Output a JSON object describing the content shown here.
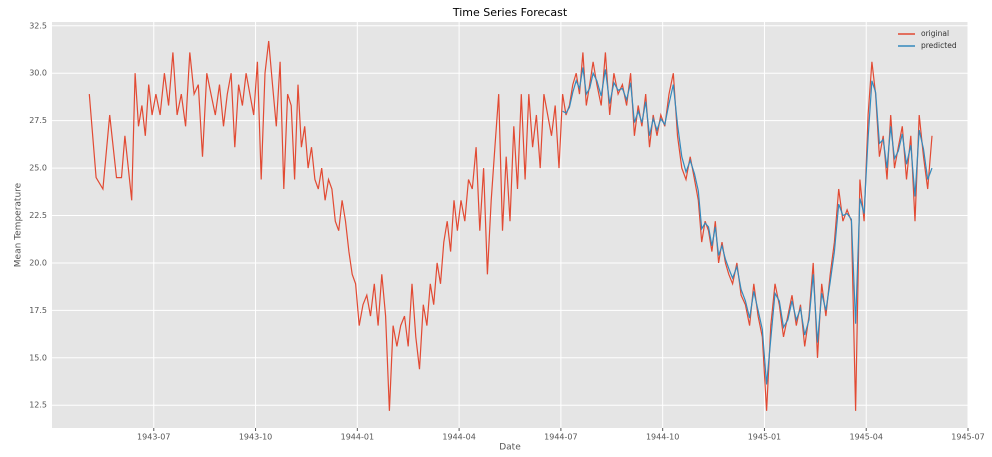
{
  "chart_data": {
    "type": "line",
    "title": "Time Series Forecast",
    "xlabel": "Date",
    "ylabel": "Mean Temperature",
    "x": [
      "1943-05",
      "1943-06",
      "1943-07",
      "1943-08",
      "1943-09",
      "1943-10",
      "1943-11",
      "1943-12",
      "1944-01",
      "1944-02",
      "1944-03",
      "1944-04",
      "1944-05",
      "1944-06",
      "1944-07",
      "1944-08",
      "1944-09",
      "1944-10",
      "1944-11",
      "1944-12",
      "1945-01",
      "1945-02",
      "1945-03",
      "1945-04",
      "1945-05"
    ],
    "series": [
      {
        "name": "original",
        "color": "#E24A33",
        "values": [
          [
            28.9,
            24.5,
            23.9,
            27.8,
            24.5
          ],
          [
            24.5,
            26.7,
            25.0,
            23.3,
            30.0,
            27.2,
            28.3,
            26.7,
            29.4,
            27.8
          ],
          [
            28.9,
            27.8,
            30.0,
            28.3,
            31.1,
            27.8,
            28.9,
            27.2
          ],
          [
            31.1,
            28.9,
            29.4,
            25.6,
            30.0,
            28.9,
            27.8,
            29.4
          ],
          [
            27.2,
            28.9,
            30.0,
            26.1,
            29.4,
            28.3,
            30.0,
            28.9,
            27.8
          ],
          [
            30.6,
            24.4,
            30.0,
            31.7,
            29.4,
            27.2,
            30.6,
            23.9,
            28.9
          ],
          [
            28.3,
            24.4,
            29.4,
            26.1,
            27.2,
            25.0,
            26.1,
            24.4,
            23.9,
            25.0
          ],
          [
            23.3,
            24.4,
            23.9,
            22.2,
            21.7,
            23.3,
            22.2,
            20.6,
            19.4,
            18.9
          ],
          [
            16.7,
            17.8,
            18.3,
            17.2,
            18.9,
            16.7,
            19.4,
            17.2,
            12.2
          ],
          [
            16.7,
            15.6,
            16.7,
            17.2,
            15.6,
            18.9,
            16.1,
            14.4,
            17.8
          ],
          [
            16.7,
            18.9,
            17.8,
            20.0,
            18.9,
            21.1,
            22.2,
            20.6,
            23.3,
            21.7
          ],
          [
            23.3,
            22.2,
            24.4,
            23.9,
            26.1,
            21.7,
            25.0,
            19.4,
            23.3
          ],
          [
            26.1,
            28.9,
            21.7,
            25.6,
            22.2,
            27.2,
            23.9,
            28.9,
            24.4
          ],
          [
            28.9,
            26.1,
            27.8,
            25.0,
            28.9,
            27.8,
            26.7,
            28.3,
            25.0
          ],
          [
            28.9,
            27.8,
            28.3,
            29.4,
            30.0,
            28.9,
            31.1,
            28.3,
            29.4,
            30.6
          ],
          [
            29.4,
            28.3,
            31.1,
            27.8,
            30.0,
            28.9,
            29.4,
            28.3
          ],
          [
            30.0,
            26.7,
            28.3,
            27.2,
            28.9,
            26.1,
            27.8,
            26.7,
            27.8
          ],
          [
            27.2,
            28.9,
            30.0,
            26.7,
            25.0,
            24.4,
            25.6,
            24.4
          ],
          [
            23.3,
            21.1,
            22.2,
            21.7,
            20.6,
            22.2,
            20.0,
            21.1,
            20.0,
            19.4
          ],
          [
            18.9,
            20.0,
            18.3,
            17.8,
            16.7,
            18.9,
            17.2,
            16.1
          ],
          [
            12.2,
            16.7,
            18.9,
            17.8,
            16.1,
            17.2,
            18.3,
            16.7
          ],
          [
            17.8,
            15.6,
            17.2,
            20.0,
            15.0,
            18.9,
            17.2,
            19.4
          ],
          [
            21.1,
            23.9,
            22.2,
            22.8,
            22.2,
            12.2,
            24.4,
            22.2
          ],
          [
            27.8,
            30.6,
            28.9,
            25.6,
            26.7,
            24.4,
            27.8,
            25.0,
            26.1
          ],
          [
            27.2,
            24.4,
            26.7,
            22.2,
            27.8,
            25.6,
            23.9,
            26.7
          ]
        ]
      },
      {
        "name": "predicted",
        "color": "#348ABD",
        "values": [
          null,
          null,
          null,
          null,
          null,
          null,
          null,
          null,
          null,
          null,
          null,
          null,
          null,
          null,
          [
            28.0,
            27.9,
            28.2,
            29.0,
            29.6,
            29.2,
            30.3,
            28.9,
            29.2,
            30.0
          ],
          [
            29.6,
            28.8,
            30.2,
            28.4,
            29.5,
            29.1,
            29.2,
            28.6
          ],
          [
            29.5,
            27.4,
            28.0,
            27.4,
            28.5,
            26.7,
            27.6,
            27.0,
            27.6
          ],
          [
            27.3,
            28.4,
            29.4,
            27.3,
            25.6,
            24.8,
            25.4,
            24.7
          ],
          [
            23.8,
            21.8,
            22.1,
            21.9,
            20.9,
            21.9,
            20.4,
            20.9,
            20.2,
            19.7
          ],
          [
            19.2,
            19.8,
            18.6,
            18.0,
            17.1,
            18.5,
            17.5,
            16.5
          ],
          [
            13.6,
            16.0,
            18.4,
            18.0,
            16.6,
            17.0,
            18.0,
            17.0
          ],
          [
            17.6,
            16.2,
            17.0,
            19.4,
            15.8,
            18.4,
            17.5,
            19.0
          ],
          [
            20.6,
            23.1,
            22.5,
            22.6,
            22.3,
            16.8,
            23.4,
            22.6
          ],
          [
            26.6,
            29.6,
            29.0,
            26.3,
            26.5,
            25.0,
            27.2,
            25.5,
            25.9
          ],
          [
            26.8,
            25.2,
            26.2,
            23.5,
            27.0,
            26.0,
            24.4,
            25.0
          ]
        ]
      }
    ],
    "xlim": [
      "1943-04",
      "1945-07"
    ],
    "xticks": [
      "1943-07",
      "1943-10",
      "1944-01",
      "1944-04",
      "1944-07",
      "1944-10",
      "1945-01",
      "1945-04",
      "1945-07"
    ],
    "ylim": [
      11.3,
      32.7
    ],
    "yticks": [
      12.5,
      {
        "value": 15,
        "label": "15.0"
      },
      17.5,
      {
        "value": 20,
        "label": "20.0"
      },
      22.5,
      {
        "value": 25,
        "label": "25.0"
      },
      27.5,
      {
        "value": 30,
        "label": "30.0"
      },
      32.5
    ],
    "grid": true,
    "legend": "upper right"
  }
}
